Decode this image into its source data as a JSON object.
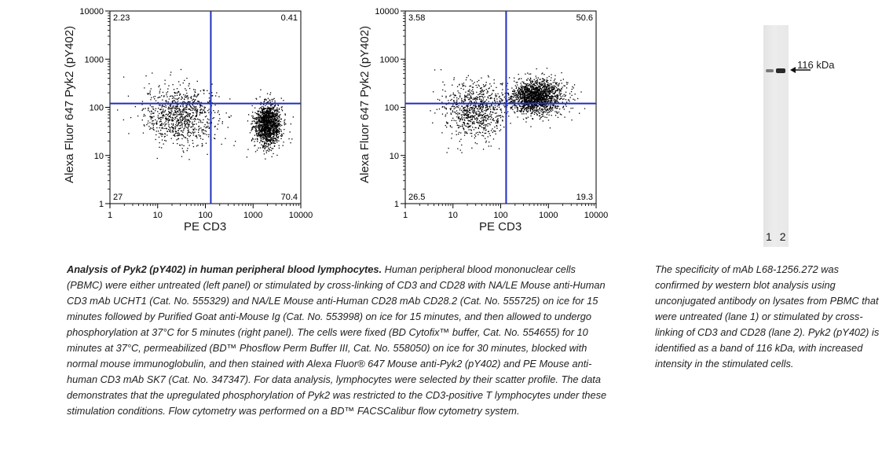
{
  "chart_data": [
    {
      "type": "scatter",
      "xlabel": "PE CD3",
      "ylabel": "Alexa Fluor 647 Pyk2 (pY402)",
      "xscale": "log",
      "yscale": "log",
      "xlim": [
        1,
        10000
      ],
      "ylim": [
        1,
        10000
      ],
      "x_ticks": [
        "1",
        "10",
        "100",
        "1000",
        "10000"
      ],
      "y_ticks": [
        "1",
        "10",
        "100",
        "1000",
        "10000"
      ],
      "quadrant_gate": {
        "x": 130,
        "y": 120
      },
      "quadrant_percentages": {
        "upper_left": "2.23",
        "upper_right": "0.41",
        "lower_left": "27",
        "lower_right": "70.4"
      },
      "clusters": [
        {
          "center": [
            30,
            70
          ],
          "spread_log10": [
            0.38,
            0.3
          ],
          "count": 900
        },
        {
          "center": [
            2000,
            45
          ],
          "spread_log10": [
            0.14,
            0.22
          ],
          "count": 1400
        }
      ],
      "grid": false
    },
    {
      "type": "scatter",
      "xlabel": "PE CD3",
      "ylabel": "Alexa Fluor 647 Pyk2 (pY402)",
      "xscale": "log",
      "yscale": "log",
      "xlim": [
        1,
        10000
      ],
      "ylim": [
        1,
        10000
      ],
      "x_ticks": [
        "1",
        "10",
        "100",
        "1000",
        "10000"
      ],
      "y_ticks": [
        "1",
        "10",
        "100",
        "1000",
        "10000"
      ],
      "quadrant_gate": {
        "x": 130,
        "y": 120
      },
      "quadrant_percentages": {
        "upper_left": "3.58",
        "upper_right": "50.6",
        "lower_left": "26.5",
        "lower_right": "19.3"
      },
      "clusters": [
        {
          "center": [
            28,
            85
          ],
          "spread_log10": [
            0.32,
            0.3
          ],
          "count": 800
        },
        {
          "center": [
            550,
            170
          ],
          "spread_log10": [
            0.28,
            0.18
          ],
          "count": 1700
        }
      ],
      "grid": false
    }
  ],
  "western_blot": {
    "marker": "116 kDa",
    "lanes": [
      "1",
      "2"
    ],
    "band_intensity": [
      0.55,
      0.9
    ],
    "colors": {
      "band": "#1a1a1a",
      "membrane": "#e8e8e8"
    }
  },
  "colors": {
    "gate": "#1f2fbf",
    "dots": "#000000"
  },
  "caption": {
    "title": "Analysis of Pyk2 (pY402) in human peripheral blood lymphocytes.",
    "body": "Human peripheral blood mononuclear cells (PBMC) were either untreated (left panel) or stimulated by cross-linking of CD3 and CD28 with NA/LE Mouse anti-Human CD3 mAb UCHT1 (Cat. No. 555329) and NA/LE Mouse anti-Human CD28 mAb CD28.2 (Cat. No. 555725) on ice for 15 minutes followed by Purified Goat anti-Mouse Ig (Cat. No. 553998) on ice for 15 minutes, and then allowed to undergo phosphorylation at 37°C for 5 minutes (right panel).  The cells were fixed (BD Cytofix™ buffer, Cat. No. 554655) for 10 minutes at 37°C, permeabilized (BD™ Phosflow Perm Buffer III, Cat. No. 558050) on ice for 30 minutes, blocked with normal mouse immunoglobulin, and then stained with Alexa Fluor® 647  Mouse anti-Pyk2 (pY402) and PE Mouse anti-human CD3 mAb SK7 (Cat. No. 347347).  For data analysis, lymphocytes were selected by their scatter profile.  The data demonstrates that the upregulated phosphorylation of Pyk2 was restricted to the CD3-positive T lymphocytes under these stimulation conditions.  Flow cytometry was performed on a BD™ FACSCalibur flow cytometry system."
  },
  "side_caption": "The specificity of mAb L68-1256.272 was confirmed by western blot analysis using unconjugated antibody on lysates from PBMC that were untreated (lane 1) or stimulated by cross-linking of CD3 and CD28 (lane 2).  Pyk2 (pY402) is identified as a band of 116 kDa, with increased intensity in the stimulated cells."
}
